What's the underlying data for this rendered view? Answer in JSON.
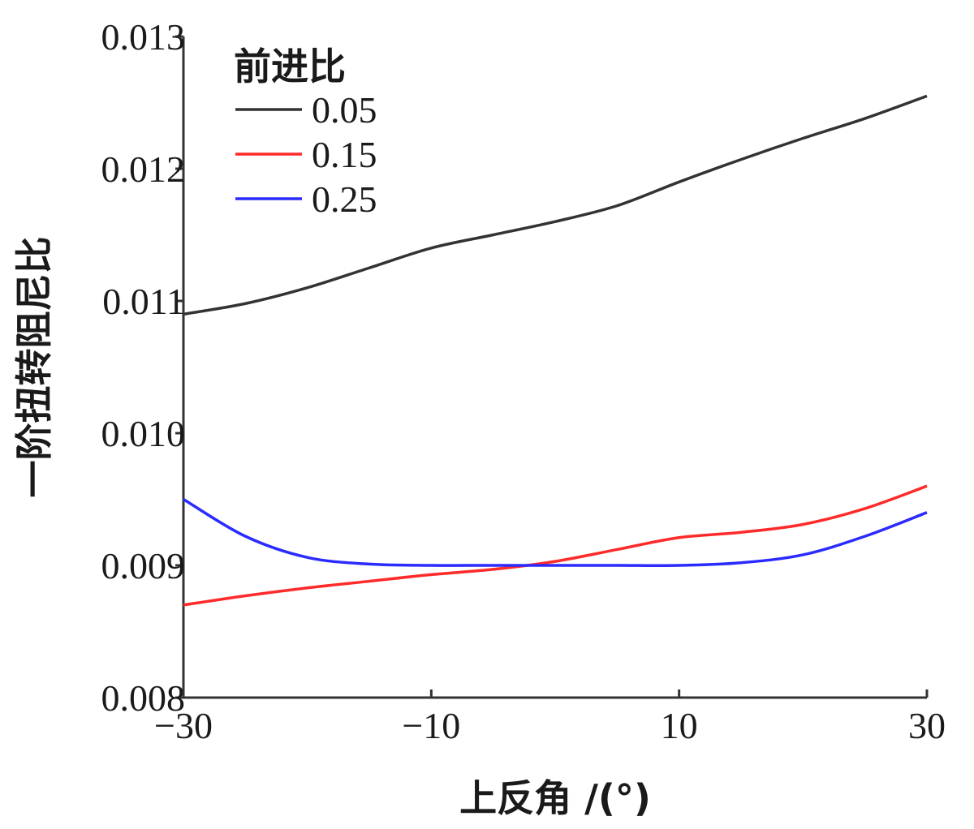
{
  "chart_data": {
    "type": "line",
    "xlabel": "上反角 /(°)",
    "ylabel": "一阶扭转阻尼比",
    "xlim": [
      -30,
      30
    ],
    "ylim": [
      0.008,
      0.013
    ],
    "xticks": [
      -30,
      -10,
      10,
      30
    ],
    "xtick_labels": [
      "−30",
      "−10",
      "10",
      "30"
    ],
    "yticks": [
      0.008,
      0.009,
      0.01,
      0.011,
      0.012,
      0.013
    ],
    "ytick_labels": [
      "0.008",
      "0.009",
      "0.010",
      "0.011",
      "0.012",
      "0.013"
    ],
    "grid": false,
    "legend": {
      "title": "前进比",
      "position": "top-left"
    },
    "series": [
      {
        "name": "0.05",
        "color": "#333333",
        "x": [
          -30,
          -25,
          -20,
          -15,
          -10,
          -5,
          0,
          5,
          10,
          15,
          20,
          25,
          30
        ],
        "y": [
          0.0109,
          0.01098,
          0.0111,
          0.01125,
          0.0114,
          0.0115,
          0.0116,
          0.01172,
          0.0119,
          0.01207,
          0.01223,
          0.01238,
          0.01255
        ]
      },
      {
        "name": "0.15",
        "color": "#ff2a2a",
        "x": [
          -30,
          -25,
          -20,
          -15,
          -10,
          -5,
          0,
          5,
          10,
          15,
          20,
          25,
          30
        ],
        "y": [
          0.0087,
          0.00877,
          0.00883,
          0.00888,
          0.00893,
          0.00897,
          0.00903,
          0.00912,
          0.00921,
          0.00925,
          0.00931,
          0.00943,
          0.0096
        ]
      },
      {
        "name": "0.25",
        "color": "#2b2bff",
        "x": [
          -30,
          -25,
          -20,
          -15,
          -10,
          -5,
          0,
          5,
          10,
          15,
          20,
          25,
          30
        ],
        "y": [
          0.0095,
          0.00922,
          0.00906,
          0.00901,
          0.009,
          0.009,
          0.009,
          0.009,
          0.009,
          0.00902,
          0.00908,
          0.00922,
          0.0094
        ]
      }
    ]
  }
}
